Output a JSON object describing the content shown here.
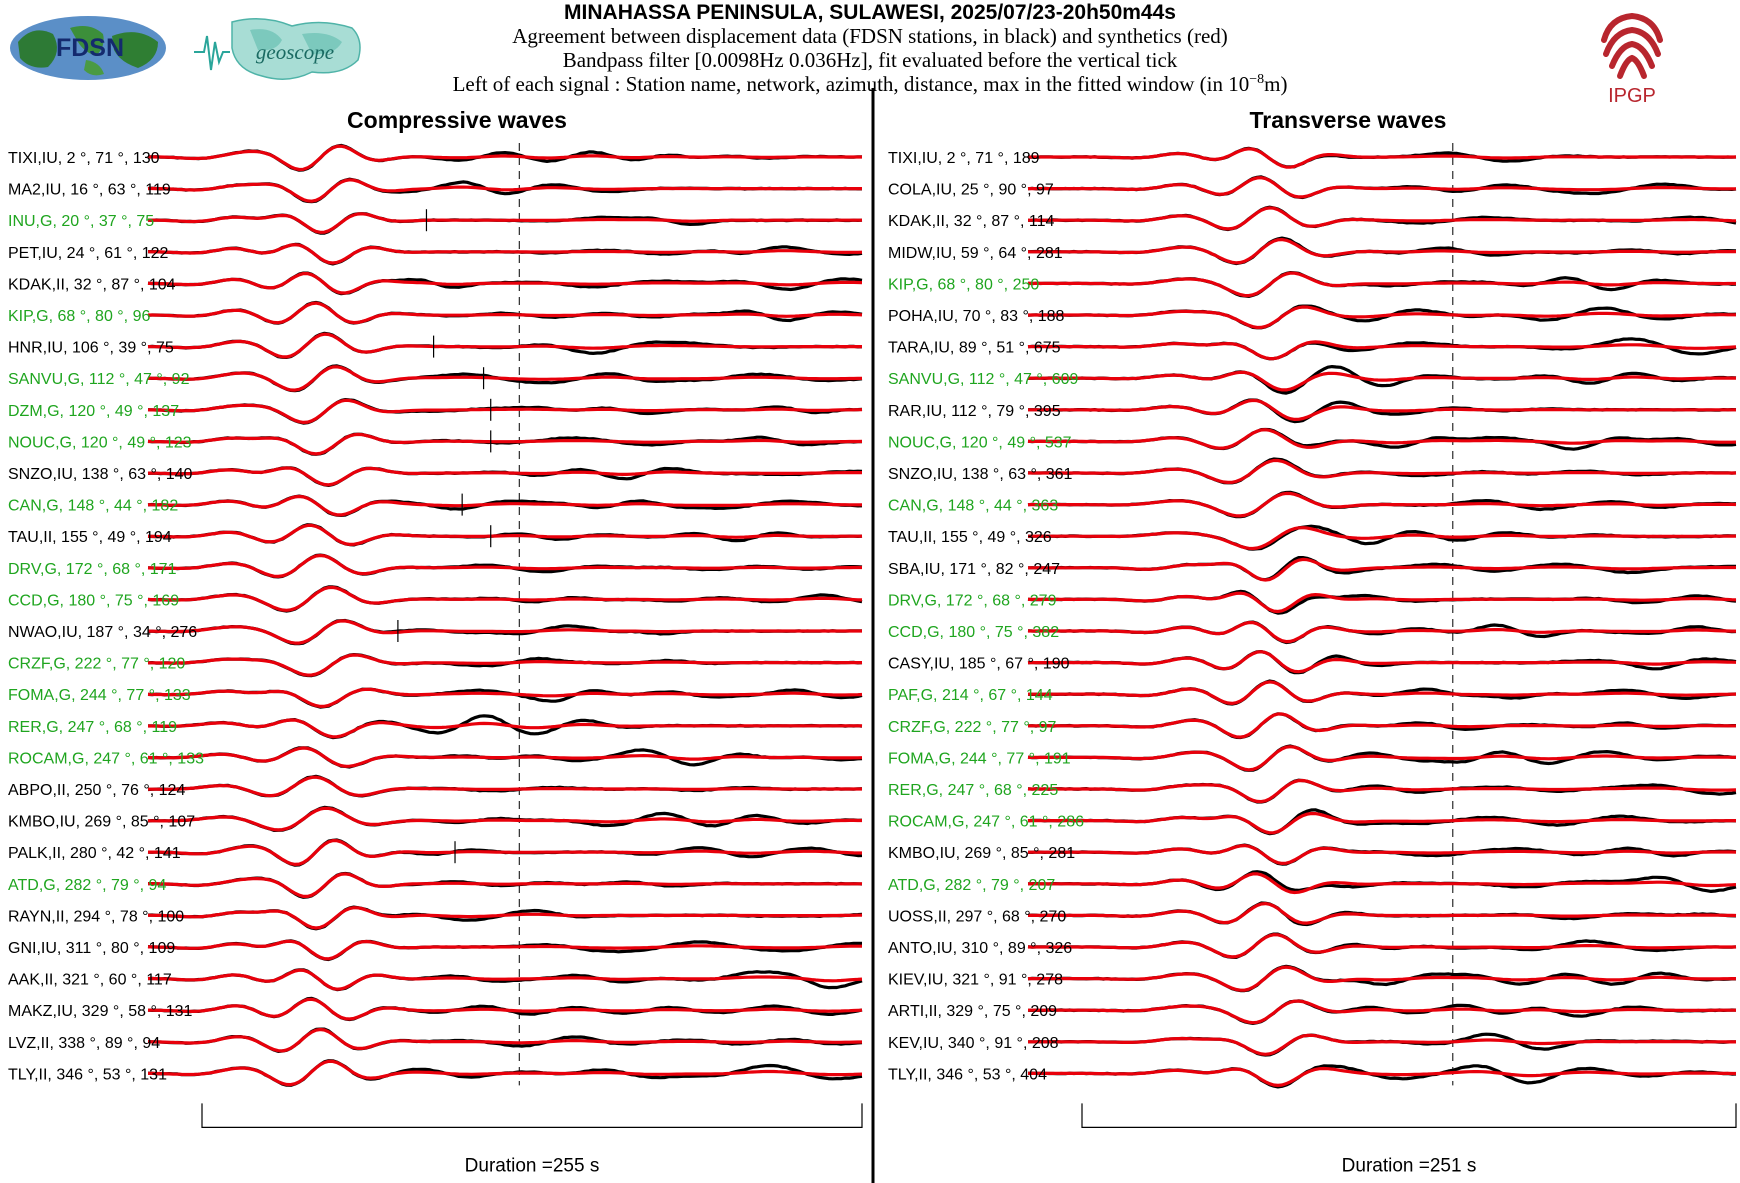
{
  "header": {
    "title": "MINAHASSA PENINSULA, SULAWESI, 2025/07/23-20h50m44s",
    "subtitle_1": "Agreement between displacement data (FDSN stations, in black) and synthetics (red)",
    "subtitle_2": "Bandpass filter [0.0098Hz 0.036Hz], fit evaluated before the vertical tick",
    "subtitle_3_prefix": "Left of each signal : Station name, network, azimuth, distance, max in the fitted window (in 10",
    "subtitle_3_exp": "−8",
    "subtitle_3_suffix": "m)"
  },
  "logos": {
    "fdsn": "FDSN",
    "geoscope": "geoscope",
    "ipgp": "IPGP"
  },
  "colors": {
    "data": "#000000",
    "synthetic": "#e8000b",
    "geoscope_label": "#1fa51f",
    "other_label": "#000000",
    "ipgp_red": "#b8262e"
  },
  "chart_data": [
    {
      "type": "line",
      "title": "Compressive waves",
      "duration_label": "Duration =255 s",
      "duration_s": 255,
      "series_colors": {
        "data": "black",
        "synthetics": "red"
      },
      "stations": [
        {
          "label": "TIXI,IU, 2 °, 71 °, 130",
          "network": "IU",
          "azimuth": 2,
          "distance": 71,
          "max": 130,
          "tick_frac": 0.52
        },
        {
          "label": "MA2,IU, 16 °, 63 °, 119",
          "network": "IU",
          "azimuth": 16,
          "distance": 63,
          "max": 119,
          "tick_frac": 0.52
        },
        {
          "label": "INU,G, 20 °, 37 °, 75",
          "network": "G",
          "azimuth": 20,
          "distance": 37,
          "max": 75,
          "tick_frac": 0.39
        },
        {
          "label": "PET,IU, 24 °, 61 °, 122",
          "network": "IU",
          "azimuth": 24,
          "distance": 61,
          "max": 122,
          "tick_frac": 0.52
        },
        {
          "label": "KDAK,II, 32 °, 87 °, 104",
          "network": "II",
          "azimuth": 32,
          "distance": 87,
          "max": 104,
          "tick_frac": 0.52
        },
        {
          "label": "KIP,G, 68 °, 80 °, 96",
          "network": "G",
          "azimuth": 68,
          "distance": 80,
          "max": 96,
          "tick_frac": 0.52
        },
        {
          "label": "HNR,IU, 106 °, 39 °, 75",
          "network": "IU",
          "azimuth": 106,
          "distance": 39,
          "max": 75,
          "tick_frac": 0.4
        },
        {
          "label": "SANVU,G, 112 °, 47 °, 92",
          "network": "G",
          "azimuth": 112,
          "distance": 47,
          "max": 92,
          "tick_frac": 0.47
        },
        {
          "label": "DZM,G, 120 °, 49 °, 137",
          "network": "G",
          "azimuth": 120,
          "distance": 49,
          "max": 137,
          "tick_frac": 0.48
        },
        {
          "label": "NOUC,G, 120 °, 49 °, 123",
          "network": "G",
          "azimuth": 120,
          "distance": 49,
          "max": 123,
          "tick_frac": 0.48
        },
        {
          "label": "SNZO,IU, 138 °, 63 °, 140",
          "network": "IU",
          "azimuth": 138,
          "distance": 63,
          "max": 140,
          "tick_frac": 0.52
        },
        {
          "label": "CAN,G, 148 °, 44 °, 182",
          "network": "G",
          "azimuth": 148,
          "distance": 44,
          "max": 182,
          "tick_frac": 0.44
        },
        {
          "label": "TAU,II, 155 °, 49 °, 194",
          "network": "II",
          "azimuth": 155,
          "distance": 49,
          "max": 194,
          "tick_frac": 0.48
        },
        {
          "label": "DRV,G, 172 °, 68 °, 171",
          "network": "G",
          "azimuth": 172,
          "distance": 68,
          "max": 171,
          "tick_frac": 0.52
        },
        {
          "label": "CCD,G, 180 °, 75 °, 169",
          "network": "G",
          "azimuth": 180,
          "distance": 75,
          "max": 169,
          "tick_frac": 0.52
        },
        {
          "label": "NWAO,IU, 187 °, 34 °, 276",
          "network": "IU",
          "azimuth": 187,
          "distance": 34,
          "max": 276,
          "tick_frac": 0.35
        },
        {
          "label": "CRZF,G, 222 °, 77 °, 120",
          "network": "G",
          "azimuth": 222,
          "distance": 77,
          "max": 120,
          "tick_frac": 0.52
        },
        {
          "label": "FOMA,G, 244 °, 77 °, 133",
          "network": "G",
          "azimuth": 244,
          "distance": 77,
          "max": 133,
          "tick_frac": 0.52
        },
        {
          "label": "RER,G, 247 °, 68 °, 119",
          "network": "G",
          "azimuth": 247,
          "distance": 68,
          "max": 119,
          "tick_frac": 0.52
        },
        {
          "label": "ROCAM,G, 247 °, 61 °, 133",
          "network": "G",
          "azimuth": 247,
          "distance": 61,
          "max": 133,
          "tick_frac": 0.52
        },
        {
          "label": "ABPO,II, 250 °, 76 °, 124",
          "network": "II",
          "azimuth": 250,
          "distance": 76,
          "max": 124,
          "tick_frac": 0.52
        },
        {
          "label": "KMBO,IU, 269 °, 85 °, 107",
          "network": "IU",
          "azimuth": 269,
          "distance": 85,
          "max": 107,
          "tick_frac": 0.52
        },
        {
          "label": "PALK,II, 280 °, 42 °, 141",
          "network": "II",
          "azimuth": 280,
          "distance": 42,
          "max": 141,
          "tick_frac": 0.43
        },
        {
          "label": "ATD,G, 282 °, 79 °, 94",
          "network": "G",
          "azimuth": 282,
          "distance": 79,
          "max": 94,
          "tick_frac": 0.52
        },
        {
          "label": "RAYN,II, 294 °, 78 °, 100",
          "network": "II",
          "azimuth": 294,
          "distance": 78,
          "max": 100,
          "tick_frac": 0.52
        },
        {
          "label": "GNI,IU, 311 °, 80 °, 109",
          "network": "IU",
          "azimuth": 311,
          "distance": 80,
          "max": 109,
          "tick_frac": 0.52
        },
        {
          "label": "AAK,II, 321 °, 60 °, 117",
          "network": "II",
          "azimuth": 321,
          "distance": 60,
          "max": 117,
          "tick_frac": 0.52
        },
        {
          "label": "MAKZ,IU, 329 °, 58 °, 131",
          "network": "IU",
          "azimuth": 329,
          "distance": 58,
          "max": 131,
          "tick_frac": 0.52
        },
        {
          "label": "LVZ,II, 338 °, 89 °, 94",
          "network": "II",
          "azimuth": 338,
          "distance": 89,
          "max": 94,
          "tick_frac": 0.52
        },
        {
          "label": "TLY,II, 346 °, 53 °, 131",
          "network": "II",
          "azimuth": 346,
          "distance": 53,
          "max": 131,
          "tick_frac": 0.52
        }
      ]
    },
    {
      "type": "line",
      "title": "Transverse waves",
      "duration_label": "Duration =251 s",
      "duration_s": 251,
      "series_colors": {
        "data": "black",
        "synthetics": "red"
      },
      "stations": [
        {
          "label": "TIXI,IU, 2 °, 71 °, 189",
          "network": "IU",
          "azimuth": 2,
          "distance": 71,
          "max": 189,
          "tick_frac": 0.6
        },
        {
          "label": "COLA,IU, 25 °, 90 °, 97",
          "network": "IU",
          "azimuth": 25,
          "distance": 90,
          "max": 97,
          "tick_frac": 0.6
        },
        {
          "label": "KDAK,II, 32 °, 87 °, 114",
          "network": "II",
          "azimuth": 32,
          "distance": 87,
          "max": 114,
          "tick_frac": 0.6
        },
        {
          "label": "MIDW,IU, 59 °, 64 °, 281",
          "network": "IU",
          "azimuth": 59,
          "distance": 64,
          "max": 281,
          "tick_frac": 0.6
        },
        {
          "label": "KIP,G, 68 °, 80 °, 250",
          "network": "G",
          "azimuth": 68,
          "distance": 80,
          "max": 250,
          "tick_frac": 0.6
        },
        {
          "label": "POHA,IU, 70 °, 83 °, 188",
          "network": "IU",
          "azimuth": 70,
          "distance": 83,
          "max": 188,
          "tick_frac": 0.6
        },
        {
          "label": "TARA,IU, 89 °, 51 °, 675",
          "network": "IU",
          "azimuth": 89,
          "distance": 51,
          "max": 675,
          "tick_frac": 0.6
        },
        {
          "label": "SANVU,G, 112 °, 47 °, 609",
          "network": "G",
          "azimuth": 112,
          "distance": 47,
          "max": 609,
          "tick_frac": 0.6
        },
        {
          "label": "RAR,IU, 112 °, 79 °, 395",
          "network": "IU",
          "azimuth": 112,
          "distance": 79,
          "max": 395,
          "tick_frac": 0.6
        },
        {
          "label": "NOUC,G, 120 °, 49 °, 537",
          "network": "G",
          "azimuth": 120,
          "distance": 49,
          "max": 537,
          "tick_frac": 0.6
        },
        {
          "label": "SNZO,IU, 138 °, 63 °, 361",
          "network": "IU",
          "azimuth": 138,
          "distance": 63,
          "max": 361,
          "tick_frac": 0.6
        },
        {
          "label": "CAN,G, 148 °, 44 °, 363",
          "network": "G",
          "azimuth": 148,
          "distance": 44,
          "max": 363,
          "tick_frac": 0.6
        },
        {
          "label": "TAU,II, 155 °, 49 °, 326",
          "network": "II",
          "azimuth": 155,
          "distance": 49,
          "max": 326,
          "tick_frac": 0.6
        },
        {
          "label": "SBA,IU, 171 °, 82 °, 247",
          "network": "IU",
          "azimuth": 171,
          "distance": 82,
          "max": 247,
          "tick_frac": 0.6
        },
        {
          "label": "DRV,G, 172 °, 68 °, 279",
          "network": "G",
          "azimuth": 172,
          "distance": 68,
          "max": 279,
          "tick_frac": 0.6
        },
        {
          "label": "CCD,G, 180 °, 75 °, 382",
          "network": "G",
          "azimuth": 180,
          "distance": 75,
          "max": 382,
          "tick_frac": 0.6
        },
        {
          "label": "CASY,IU, 185 °, 67 °, 190",
          "network": "IU",
          "azimuth": 185,
          "distance": 67,
          "max": 190,
          "tick_frac": 0.6
        },
        {
          "label": "PAF,G, 214 °, 67 °, 144",
          "network": "G",
          "azimuth": 214,
          "distance": 67,
          "max": 144,
          "tick_frac": 0.6
        },
        {
          "label": "CRZF,G, 222 °, 77 °, 97",
          "network": "G",
          "azimuth": 222,
          "distance": 77,
          "max": 97,
          "tick_frac": 0.6
        },
        {
          "label": "FOMA,G, 244 °, 77 °, 191",
          "network": "G",
          "azimuth": 244,
          "distance": 77,
          "max": 191,
          "tick_frac": 0.6
        },
        {
          "label": "RER,G, 247 °, 68 °, 225",
          "network": "G",
          "azimuth": 247,
          "distance": 68,
          "max": 225,
          "tick_frac": 0.6
        },
        {
          "label": "ROCAM,G, 247 °, 61 °, 286",
          "network": "G",
          "azimuth": 247,
          "distance": 61,
          "max": 286,
          "tick_frac": 0.6
        },
        {
          "label": "KMBO,IU, 269 °, 85 °, 281",
          "network": "IU",
          "azimuth": 269,
          "distance": 85,
          "max": 281,
          "tick_frac": 0.6
        },
        {
          "label": "ATD,G, 282 °, 79 °, 207",
          "network": "G",
          "azimuth": 282,
          "distance": 79,
          "max": 207,
          "tick_frac": 0.6
        },
        {
          "label": "UOSS,II, 297 °, 68 °, 270",
          "network": "II",
          "azimuth": 297,
          "distance": 68,
          "max": 270,
          "tick_frac": 0.6
        },
        {
          "label": "ANTO,IU, 310 °, 89 °, 326",
          "network": "IU",
          "azimuth": 310,
          "distance": 89,
          "max": 326,
          "tick_frac": 0.6
        },
        {
          "label": "KIEV,IU, 321 °, 91 °, 278",
          "network": "IU",
          "azimuth": 321,
          "distance": 91,
          "max": 278,
          "tick_frac": 0.6
        },
        {
          "label": "ARTI,II, 329 °, 75 °, 209",
          "network": "II",
          "azimuth": 329,
          "distance": 75,
          "max": 209,
          "tick_frac": 0.6
        },
        {
          "label": "KEV,IU, 340 °, 91 °, 208",
          "network": "IU",
          "azimuth": 340,
          "distance": 91,
          "max": 208,
          "tick_frac": 0.6
        },
        {
          "label": "TLY,II, 346 °, 53 °, 404",
          "network": "II",
          "azimuth": 346,
          "distance": 53,
          "max": 404,
          "tick_frac": 0.6
        }
      ]
    }
  ]
}
